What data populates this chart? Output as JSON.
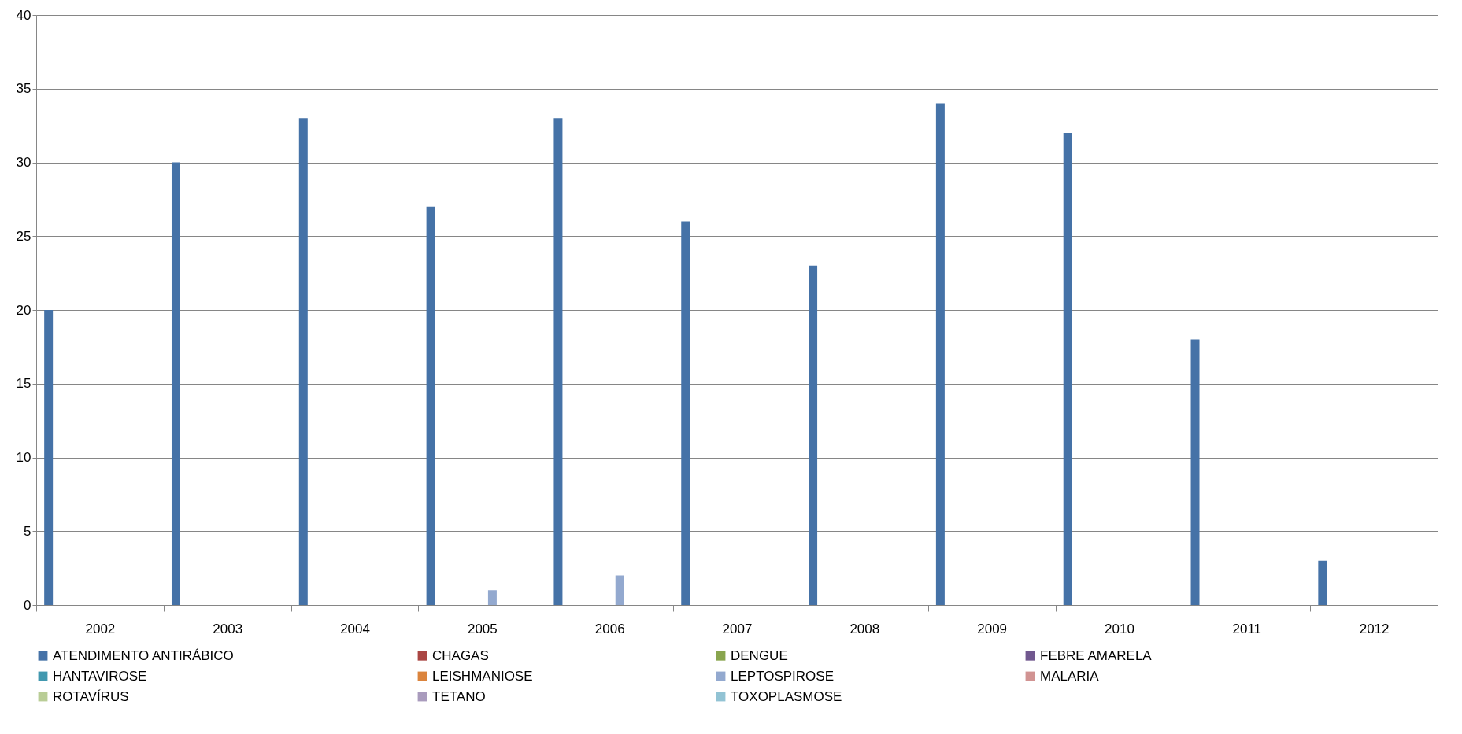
{
  "chart_data": {
    "type": "bar",
    "categories": [
      "2002",
      "2003",
      "2004",
      "2005",
      "2006",
      "2007",
      "2008",
      "2009",
      "2010",
      "2011",
      "2012"
    ],
    "series": [
      {
        "name": "ATENDIMENTO ANTIRÁBICO",
        "color": "#4572a7",
        "values": [
          20,
          30,
          33,
          27,
          33,
          26,
          23,
          34,
          32,
          18,
          3
        ]
      },
      {
        "name": "CHAGAS",
        "color": "#aa4643",
        "values": [
          0,
          0,
          0,
          0,
          0,
          0,
          0,
          0,
          0,
          0,
          0
        ]
      },
      {
        "name": "DENGUE",
        "color": "#89a54e",
        "values": [
          0,
          0,
          0,
          0,
          0,
          0,
          0,
          0,
          0,
          0,
          0
        ]
      },
      {
        "name": "FEBRE AMARELA",
        "color": "#71588f",
        "values": [
          0,
          0,
          0,
          0,
          0,
          0,
          0,
          0,
          0,
          0,
          0
        ]
      },
      {
        "name": "HANTAVIROSE",
        "color": "#4198af",
        "values": [
          0,
          0,
          0,
          0,
          0,
          0,
          0,
          0,
          0,
          0,
          0
        ]
      },
      {
        "name": "LEISHMANIOSE",
        "color": "#db843d",
        "values": [
          0,
          0,
          0,
          0,
          0,
          0,
          0,
          0,
          0,
          0,
          0
        ]
      },
      {
        "name": "LEPTOSPIROSE",
        "color": "#93a9cf",
        "values": [
          0,
          0,
          0,
          1,
          2,
          0,
          0,
          0,
          0,
          0,
          0
        ]
      },
      {
        "name": "MALARIA",
        "color": "#d19392",
        "values": [
          0,
          0,
          0,
          0,
          0,
          0,
          0,
          0,
          0,
          0,
          0
        ]
      },
      {
        "name": "ROTAVÍRUS",
        "color": "#b9cd96",
        "values": [
          0,
          0,
          0,
          0,
          0,
          0,
          0,
          0,
          0,
          0,
          0
        ]
      },
      {
        "name": "TETANO",
        "color": "#a99bbd",
        "values": [
          0,
          0,
          0,
          0,
          0,
          0,
          0,
          0,
          0,
          0,
          0
        ]
      },
      {
        "name": "TOXOPLASMOSE",
        "color": "#92c3d4",
        "values": [
          0,
          0,
          0,
          0,
          0,
          0,
          0,
          0,
          0,
          0,
          0
        ]
      }
    ],
    "ylim": [
      0,
      40
    ],
    "yticks": [
      0,
      5,
      10,
      15,
      20,
      25,
      30,
      35,
      40
    ],
    "grid": "y",
    "legend": "bottom"
  }
}
